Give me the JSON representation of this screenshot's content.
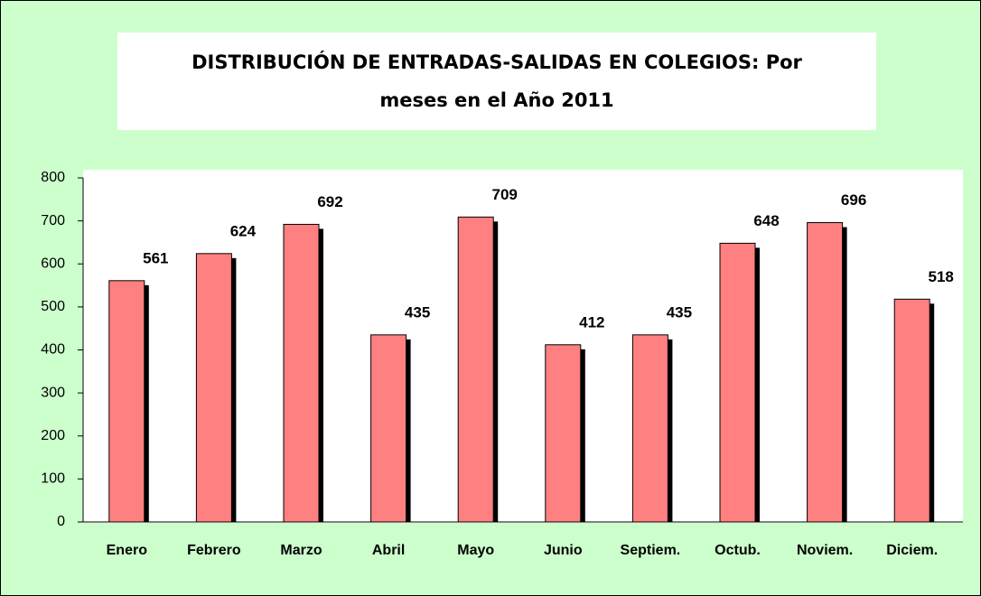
{
  "chart_data": {
    "type": "bar",
    "title": [
      "DISTRIBUCIÓN DE ENTRADAS-SALIDAS EN COLEGIOS: Por",
      "meses en el Año 2011"
    ],
    "categories": [
      "Enero",
      "Febrero",
      "Marzo",
      "Abril",
      "Mayo",
      "Junio",
      "Septiem.",
      "Octub.",
      "Noviem.",
      "Diciem."
    ],
    "values": [
      561,
      624,
      692,
      435,
      709,
      412,
      435,
      648,
      696,
      518
    ],
    "color": "#ff8080",
    "ylim": [
      0,
      800
    ],
    "yticks": [
      0,
      100,
      200,
      300,
      400,
      500,
      600,
      700,
      800
    ],
    "grid": false
  }
}
